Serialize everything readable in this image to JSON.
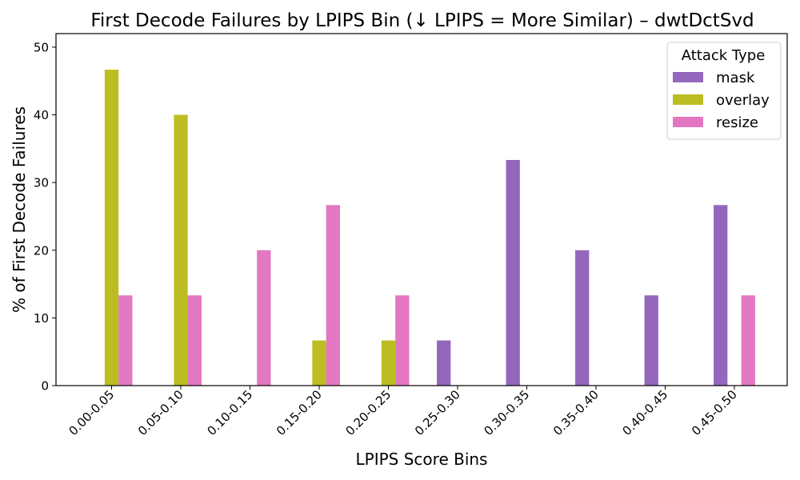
{
  "chart_data": {
    "type": "bar",
    "title": "First Decode Failures by LPIPS Bin (↓ LPIPS = More Similar) – dwtDctSvd",
    "xlabel": "LPIPS Score Bins",
    "ylabel": "% of First Decode Failures",
    "ylim": [
      0,
      52
    ],
    "yticks": [
      0,
      10,
      20,
      30,
      40,
      50
    ],
    "categories": [
      "0.00-0.05",
      "0.05-0.10",
      "0.10-0.15",
      "0.15-0.20",
      "0.20-0.25",
      "0.25-0.30",
      "0.30-0.35",
      "0.35-0.40",
      "0.40-0.45",
      "0.45-0.50"
    ],
    "legend_title": "Attack Type",
    "legend_position": "top-right",
    "grid": false,
    "series": [
      {
        "name": "mask",
        "color": "#9467bd",
        "values": [
          0,
          0,
          0,
          0,
          0,
          6.67,
          33.33,
          20.0,
          13.33,
          26.67
        ]
      },
      {
        "name": "overlay",
        "color": "#bcbd22",
        "values": [
          46.67,
          40.0,
          0,
          6.67,
          6.67,
          0,
          0,
          0,
          0,
          0
        ]
      },
      {
        "name": "resize",
        "color": "#e377c2",
        "values": [
          13.33,
          13.33,
          20.0,
          26.67,
          13.33,
          0,
          0,
          0,
          0,
          13.33
        ]
      }
    ]
  }
}
